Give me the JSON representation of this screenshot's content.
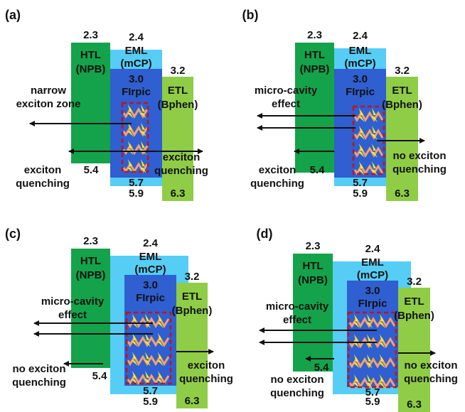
{
  "panels": [
    {
      "label": "(a)",
      "htl": {
        "energy_top": "2.3",
        "name": "HTL",
        "material": "(NPB)",
        "energy_bottom": "5.4"
      },
      "eml": {
        "energy_top": "2.4",
        "name": "EML",
        "material": "(mCP)",
        "energy_bottom": "5.9"
      },
      "dopant": {
        "energy_top": "3.0",
        "name": "FIrpic",
        "energy_bottom": "5.7"
      },
      "etl": {
        "energy_top": "3.2",
        "name": "ETL",
        "material": "(Bphen)",
        "energy_bottom": "6.3"
      },
      "notes": {
        "left": [
          "narrow",
          "exciton zone"
        ],
        "bottom_left": [
          "exciton",
          "quenching"
        ],
        "right": [
          "exciton",
          "quenching"
        ]
      }
    },
    {
      "label": "(b)",
      "htl": {
        "energy_top": "2.3",
        "name": "HTL",
        "material": "(NPB)",
        "energy_bottom": "5.4"
      },
      "eml": {
        "energy_top": "2.4",
        "name": "EML",
        "material": "(mCP)",
        "energy_bottom": "5.9"
      },
      "dopant": {
        "energy_top": "3.0",
        "name": "FIrpic",
        "energy_bottom": "5.7"
      },
      "etl": {
        "energy_top": "3.2",
        "name": "ETL",
        "material": "(Bphen)",
        "energy_bottom": "6.3"
      },
      "notes": {
        "left": [
          "micro-cavity",
          "effect"
        ],
        "bottom_left": [
          "exciton",
          "quenching"
        ],
        "right": [
          "no exciton",
          "quenching"
        ]
      }
    },
    {
      "label": "(c)",
      "htl": {
        "energy_top": "2.3",
        "name": "HTL",
        "material": "(NPB)",
        "energy_bottom": "5.4"
      },
      "eml": {
        "energy_top": "2.4",
        "name": "EML",
        "material": "(mCP)",
        "energy_bottom": "5.9"
      },
      "dopant": {
        "energy_top": "3.0",
        "name": "FIrpic",
        "energy_bottom": "5.7"
      },
      "etl": {
        "energy_top": "3.2",
        "name": "ETL",
        "material": "(Bphen)",
        "energy_bottom": "6.3"
      },
      "notes": {
        "left": [
          "micro-cavity",
          "effect"
        ],
        "bottom_left": [
          "no exciton",
          "quenching"
        ],
        "right": [
          "exciton",
          "quenching"
        ]
      }
    },
    {
      "label": "(d)",
      "htl": {
        "energy_top": "2.3",
        "name": "HTL",
        "material": "(NPB)",
        "energy_bottom": "5.4"
      },
      "eml": {
        "energy_top": "2.4",
        "name": "EML",
        "material": "(mCP)",
        "energy_bottom": "5.9"
      },
      "dopant": {
        "energy_top": "3.0",
        "name": "FIrpic",
        "energy_bottom": "5.7"
      },
      "etl": {
        "energy_top": "3.2",
        "name": "ETL",
        "material": "(Bphen)",
        "energy_bottom": "6.3"
      },
      "notes": {
        "left": [
          "micro-cavity",
          "effect"
        ],
        "bottom_left": [
          "no exciton",
          "quenching"
        ],
        "right": [
          "no exciton",
          "quenching"
        ]
      }
    }
  ]
}
